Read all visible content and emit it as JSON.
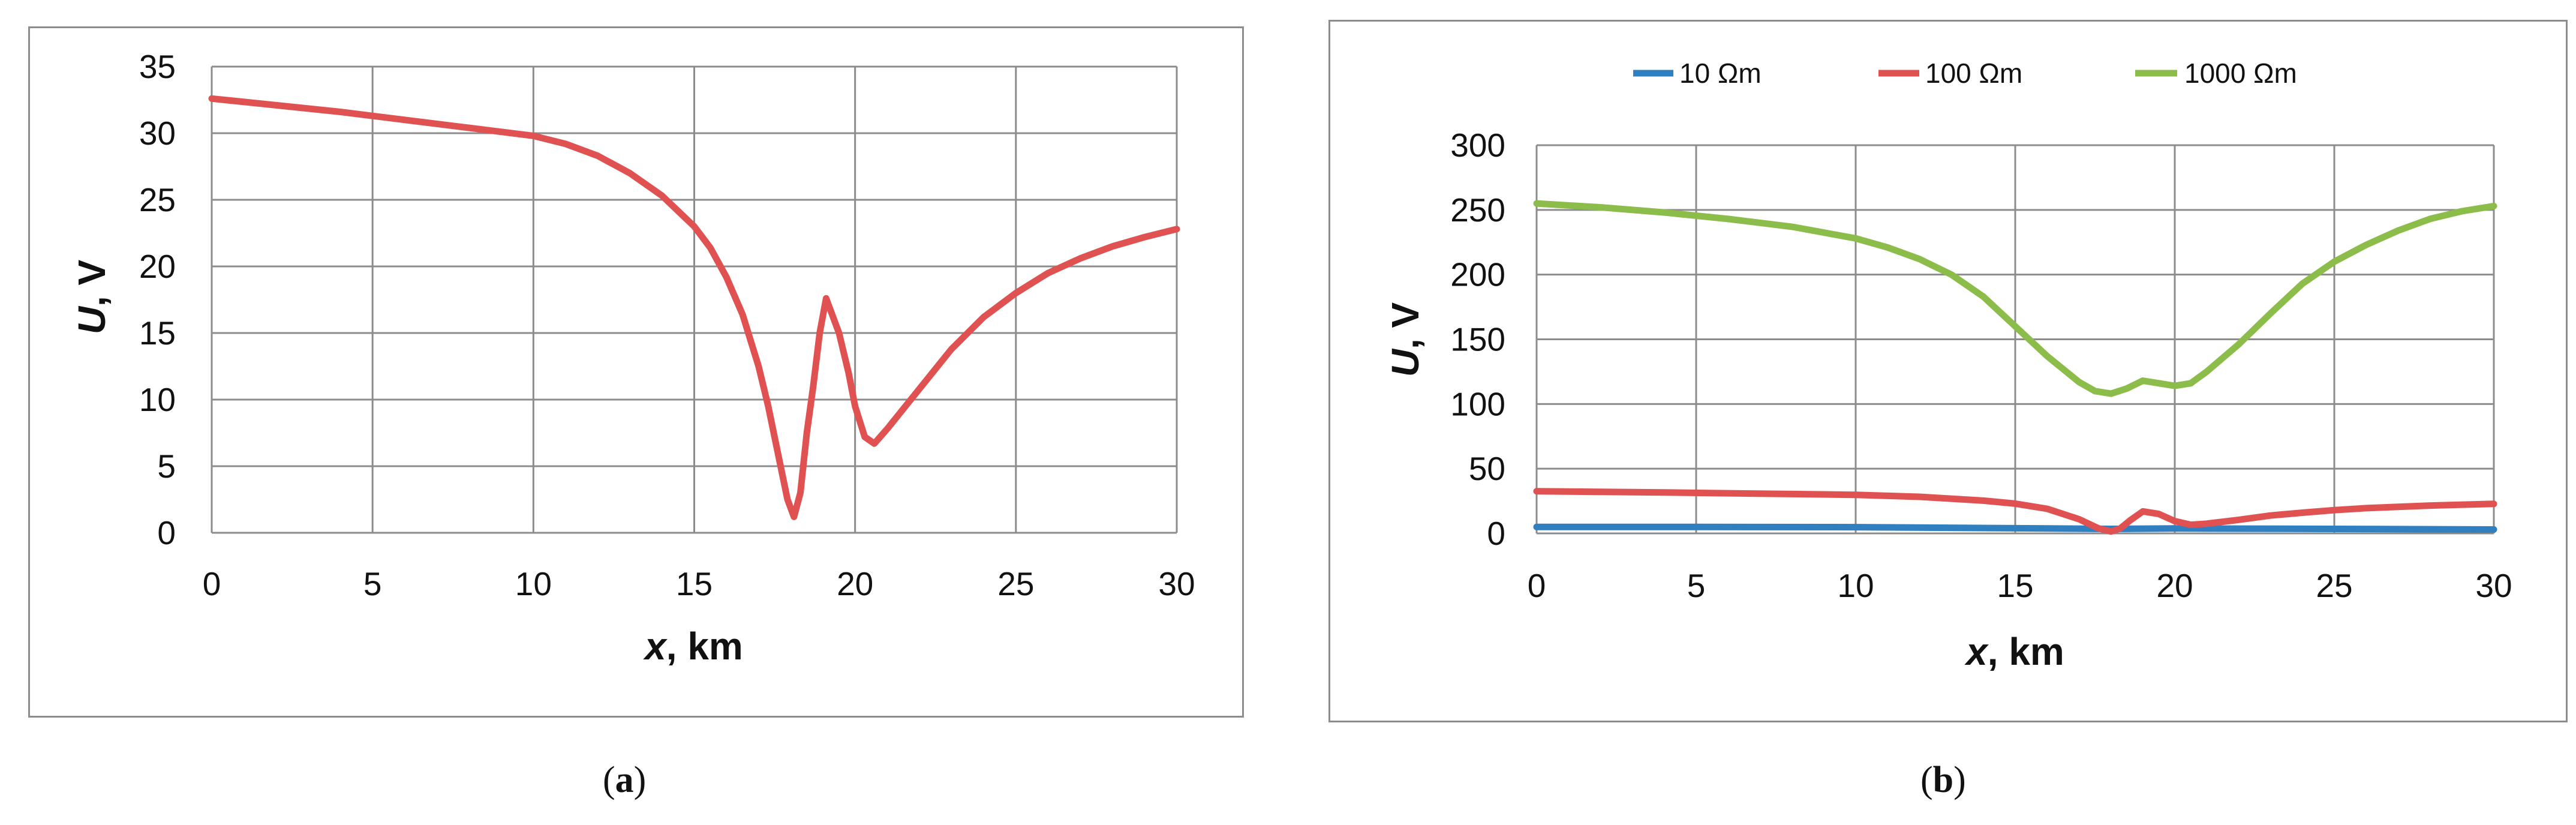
{
  "panels": [
    {
      "label_open": "(",
      "label_letter": "a",
      "label_close": ")"
    },
    {
      "label_open": "(",
      "label_letter": "b",
      "label_close": ")"
    }
  ],
  "chart_data": [
    {
      "type": "line",
      "xlabel_var": "x",
      "xlabel_unit": ", km",
      "ylabel_var": "U",
      "ylabel_unit": ", V",
      "xlim": [
        0,
        30
      ],
      "ylim": [
        0,
        35
      ],
      "xticks": [
        0,
        5,
        10,
        15,
        20,
        25,
        30
      ],
      "yticks": [
        0,
        5,
        10,
        15,
        20,
        25,
        30,
        35
      ],
      "grid": true,
      "series": [
        {
          "color": "#e05252",
          "x": [
            0,
            2,
            4,
            6,
            8,
            10,
            11,
            12,
            13,
            14,
            15,
            15.5,
            16,
            16.5,
            17,
            17.3,
            17.6,
            17.9,
            18.1,
            18.3,
            18.5,
            18.7,
            18.9,
            19.1,
            19.3,
            19.5,
            19.8,
            20.0,
            20.3,
            20.6,
            21,
            22,
            23,
            24,
            25,
            26,
            27,
            28,
            29,
            30
          ],
          "y": [
            32.6,
            32.1,
            31.6,
            31.0,
            30.4,
            29.8,
            29.2,
            28.3,
            27.0,
            25.3,
            23.0,
            21.4,
            19.2,
            16.4,
            12.5,
            9.5,
            6.0,
            2.5,
            1.2,
            3.0,
            7.5,
            11.0,
            15.0,
            17.6,
            16.3,
            15.0,
            12.0,
            9.5,
            7.2,
            6.7,
            7.8,
            10.8,
            13.8,
            16.2,
            18.0,
            19.5,
            20.6,
            21.5,
            22.2,
            22.8
          ]
        }
      ]
    },
    {
      "type": "line",
      "xlabel_var": "x",
      "xlabel_unit": ", km",
      "ylabel_var": "U",
      "ylabel_unit": ", V",
      "xlim": [
        0,
        30
      ],
      "ylim": [
        0,
        300
      ],
      "xticks": [
        0,
        5,
        10,
        15,
        20,
        25,
        30
      ],
      "yticks": [
        0,
        50,
        100,
        150,
        200,
        250,
        300
      ],
      "grid": true,
      "legend": "top",
      "series": [
        {
          "name": "10 Ωm",
          "color": "#2f7fc1",
          "x": [
            0,
            5,
            10,
            15,
            18,
            20,
            25,
            30
          ],
          "y": [
            5.0,
            5.0,
            4.8,
            4.0,
            3.5,
            3.8,
            3.5,
            3.0
          ]
        },
        {
          "name": "100 Ωm",
          "color": "#e05252",
          "x": [
            0,
            2,
            4,
            6,
            8,
            10,
            12,
            14,
            15,
            16,
            17,
            17.6,
            18,
            18.3,
            18.6,
            19,
            19.5,
            20,
            20.5,
            21,
            22,
            23,
            24,
            25,
            26,
            28,
            30
          ],
          "y": [
            32.6,
            32.1,
            31.6,
            31.0,
            30.4,
            29.8,
            28.3,
            25.3,
            23.0,
            19.0,
            11.0,
            4.0,
            1.5,
            4.0,
            10.0,
            17.0,
            15.0,
            9.5,
            6.7,
            7.5,
            10.5,
            13.8,
            16.0,
            18.0,
            19.5,
            21.5,
            22.8
          ]
        },
        {
          "name": "1000 Ωm",
          "color": "#8cbc4a",
          "x": [
            0,
            2,
            4,
            6,
            8,
            10,
            11,
            12,
            13,
            14,
            15,
            16,
            17,
            17.5,
            18,
            18.5,
            19,
            19.5,
            20,
            20.5,
            21,
            22,
            23,
            24,
            25,
            26,
            27,
            28,
            29,
            30
          ],
          "y": [
            255,
            252,
            248,
            243,
            237,
            228,
            221,
            212,
            200,
            183,
            160,
            137,
            117,
            110,
            108,
            112,
            118,
            116,
            114,
            116,
            125,
            146,
            170,
            193,
            210,
            223,
            234,
            243,
            249,
            253
          ]
        }
      ]
    }
  ]
}
